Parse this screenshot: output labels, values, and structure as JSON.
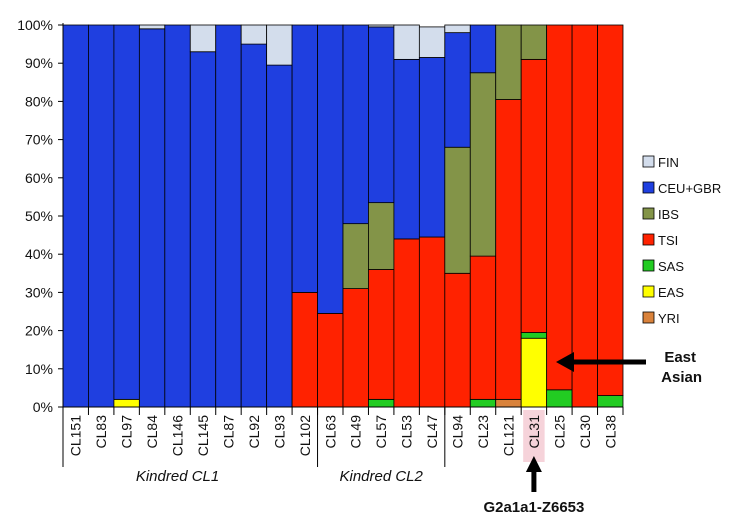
{
  "chart_data": {
    "type": "bar",
    "stacked": true,
    "y_ticks": [
      "0%",
      "10%",
      "20%",
      "30%",
      "40%",
      "50%",
      "60%",
      "70%",
      "80%",
      "90%",
      "100%"
    ],
    "ylim": [
      0,
      100
    ],
    "categories": [
      "CL151",
      "CL83",
      "CL97",
      "CL84",
      "CL146",
      "CL145",
      "CL87",
      "CL92",
      "CL93",
      "CL102",
      "CL63",
      "CL49",
      "CL57",
      "CL53",
      "CL47",
      "CL94",
      "CL23",
      "CL121",
      "CL31",
      "CL25",
      "CL30",
      "CL38"
    ],
    "highlighted_category": "CL31",
    "groups": [
      {
        "label": "Kindred CL1",
        "from": 0,
        "to": 8
      },
      {
        "label": "Kindred CL2",
        "from": 10,
        "to": 14
      }
    ],
    "group_separators_after": [
      9,
      14
    ],
    "series": [
      {
        "name": "YRI",
        "color": "#d9823b",
        "values": [
          0,
          0,
          0,
          0,
          0,
          0,
          0,
          0,
          0,
          0,
          0,
          0,
          0,
          0,
          0,
          0,
          0,
          2,
          0,
          0,
          0,
          0
        ]
      },
      {
        "name": "EAS",
        "color": "#ffff00",
        "values": [
          0,
          0,
          2,
          0,
          0,
          0,
          0,
          0,
          0,
          0,
          0,
          0,
          0,
          0,
          0,
          0,
          0,
          0,
          18,
          0,
          0,
          0
        ]
      },
      {
        "name": "SAS",
        "color": "#22cc22",
        "values": [
          0,
          0,
          0,
          0,
          0,
          0,
          0,
          0,
          0,
          0,
          0,
          0,
          2,
          0,
          0,
          0,
          2,
          0,
          1.5,
          4.5,
          0,
          3
        ]
      },
      {
        "name": "TSI",
        "color": "#ff2200",
        "values": [
          0,
          0,
          0,
          0,
          0,
          0,
          0,
          0,
          0,
          30,
          24.5,
          31,
          34,
          44,
          44.5,
          35,
          37.5,
          78.5,
          71.5,
          95.5,
          100,
          97
        ]
      },
      {
        "name": "IBS",
        "color": "#839448",
        "values": [
          0,
          0,
          0,
          0,
          0,
          0,
          0,
          0,
          0,
          0,
          0,
          17,
          17.5,
          0,
          0,
          33,
          48,
          19.5,
          9,
          0,
          0,
          0
        ]
      },
      {
        "name": "CEU+GBR",
        "color": "#1f3fe0",
        "values": [
          100,
          100,
          98,
          99,
          100,
          93,
          100,
          95,
          89.5,
          70,
          75.5,
          52,
          46,
          47,
          47,
          30,
          12.5,
          0,
          0,
          0,
          0,
          0
        ]
      },
      {
        "name": "FIN",
        "color": "#d3ddec",
        "values": [
          0,
          0,
          0,
          1,
          0,
          7,
          0,
          5,
          10.5,
          0,
          0,
          0,
          0.5,
          9,
          8,
          2,
          0,
          0,
          0,
          0,
          0,
          0
        ]
      }
    ],
    "legend": [
      "FIN",
      "CEU+GBR",
      "IBS",
      "TSI",
      "SAS",
      "EAS",
      "YRI"
    ],
    "legend_position": "right",
    "annotations": [
      {
        "text_lines": [
          "East",
          "Asian"
        ],
        "target": "CL31"
      },
      {
        "text_lines": [
          "G2a1a1-Z6653"
        ],
        "target": "CL31"
      }
    ]
  }
}
